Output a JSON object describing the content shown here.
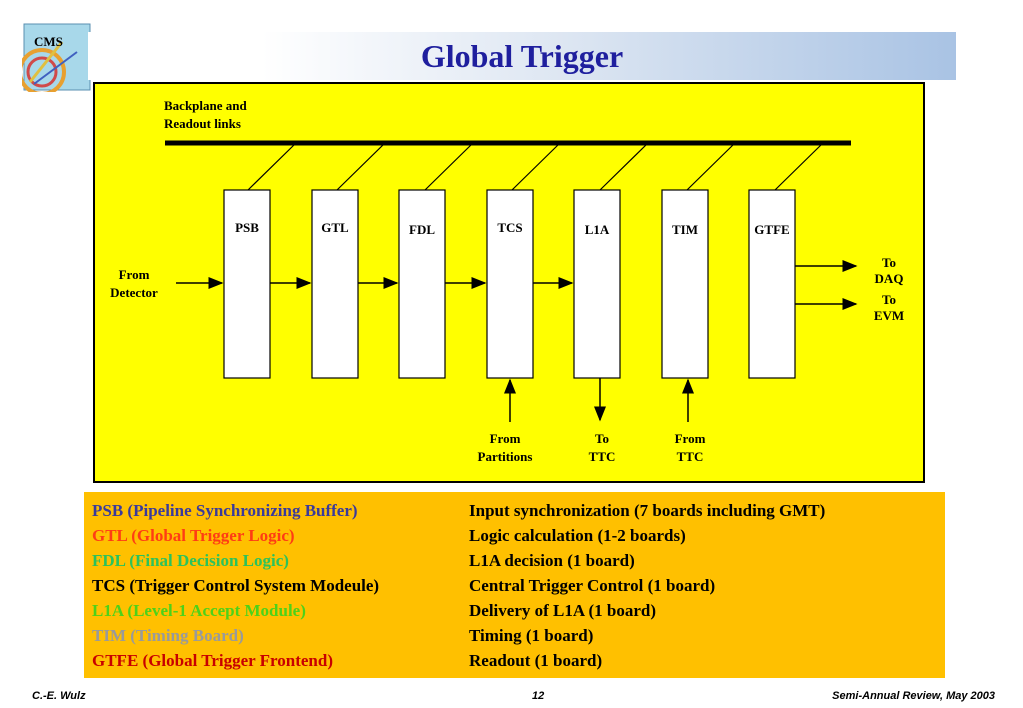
{
  "slide": {
    "title": "Global Trigger",
    "logo_text": "CMS"
  },
  "diagram": {
    "backplane_label": [
      "Backplane and",
      "Readout links"
    ],
    "boards": [
      "PSB",
      "GTL",
      "FDL",
      "TCS",
      "L1A",
      "TIM",
      "GTFE"
    ],
    "input_label": [
      "From",
      "Detector"
    ],
    "output_daq": [
      "To",
      "DAQ"
    ],
    "output_evm": [
      "To",
      "EVM"
    ],
    "from_partitions": [
      "From",
      "Partitions"
    ],
    "to_ttc": [
      "To",
      "TTC"
    ],
    "from_ttc": [
      "From",
      "TTC"
    ],
    "background_color": "#ffff00"
  },
  "legend": {
    "items": [
      {
        "abbr": "PSB (Pipeline Synchronizing Buffer)",
        "desc": "Input synchronization (7 boards including GMT)",
        "color": "#3a3a9c"
      },
      {
        "abbr": "GTL (Global Trigger Logic)",
        "desc": "Logic calculation (1-2 boards)",
        "color": "#ff3c14"
      },
      {
        "abbr": "FDL (Final Decision Logic)",
        "desc": "L1A decision (1 board)",
        "color": "#2bc25c"
      },
      {
        "abbr": "TCS (Trigger Control System Modeule)",
        "desc": "Central Trigger Control (1 board)",
        "color": "#000000"
      },
      {
        "abbr": "L1A (Level-1 Accept Module)",
        "desc": "Delivery of L1A (1 board)",
        "color": "#4cd21a"
      },
      {
        "abbr": "TIM (Timing Board)",
        "desc": "Timing (1 board)",
        "color": "#9a9a9a"
      },
      {
        "abbr": "GTFE (Global Trigger Frontend)",
        "desc": "Readout (1 board)",
        "color": "#c80000"
      }
    ],
    "background_color": "#ffc000"
  },
  "footer": {
    "author": "C.-E. Wulz",
    "page": "12",
    "event": "Semi-Annual Review, May 2003"
  }
}
